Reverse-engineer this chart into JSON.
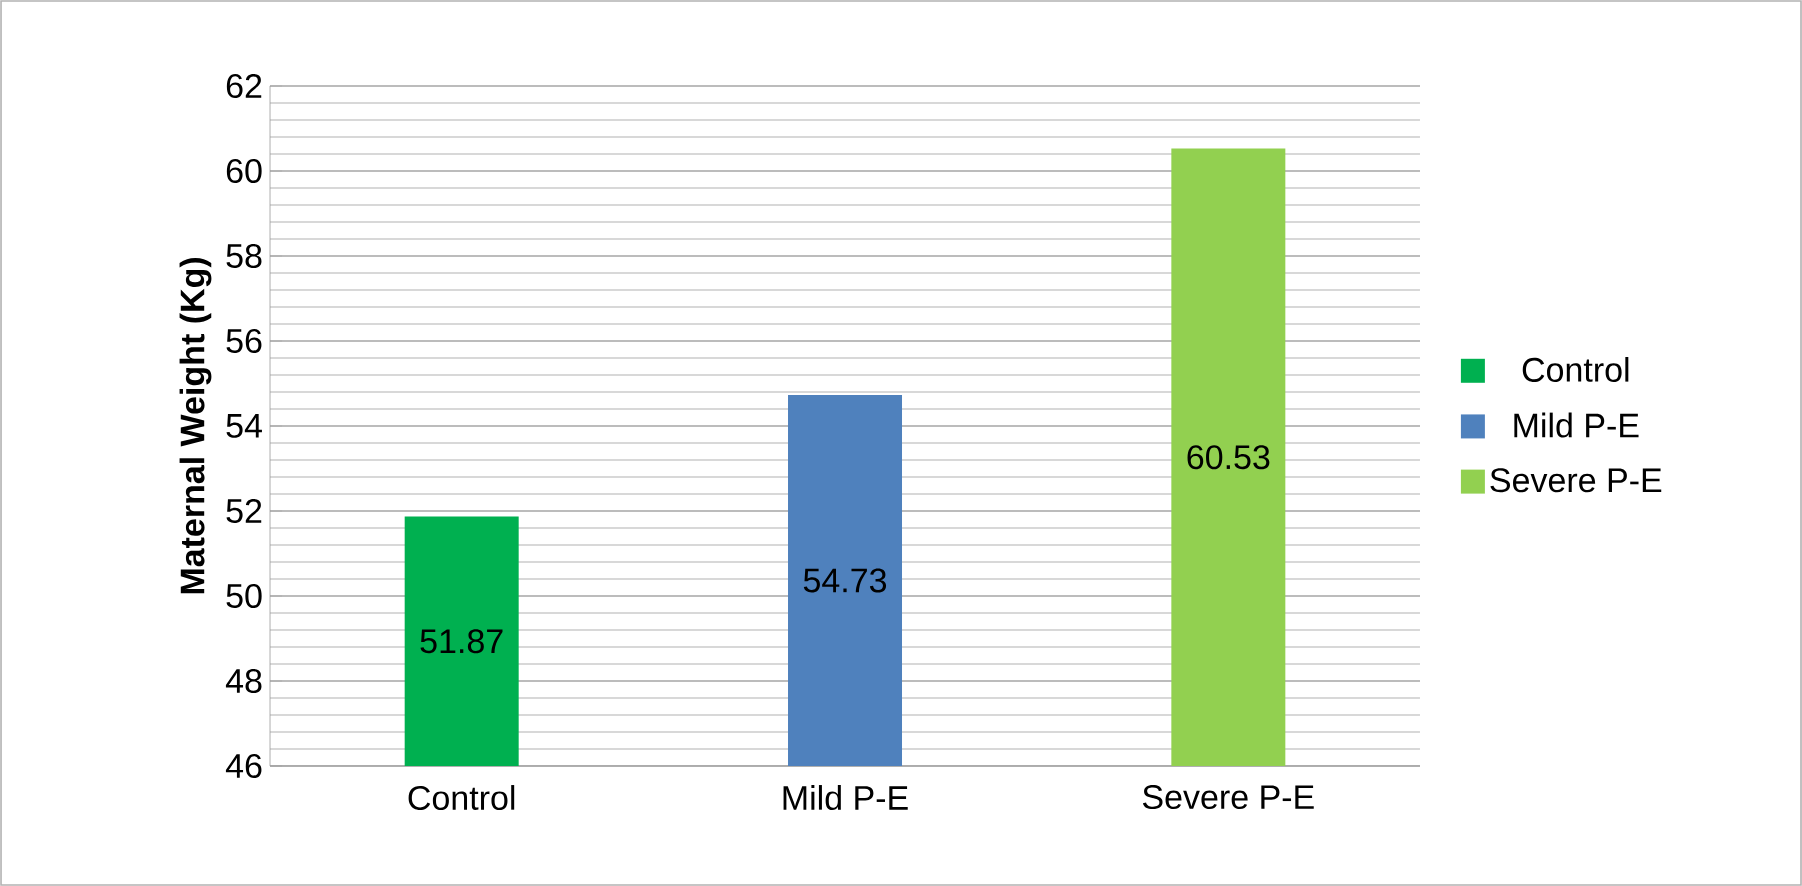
{
  "chart_data": {
    "type": "bar",
    "ylabel": "Maternal Weight (Kg)",
    "categories": [
      "Control",
      "Mild P-E",
      "Severe P-E"
    ],
    "series": [
      {
        "name": "Control",
        "color": "#00b050",
        "values": [
          51.87,
          null,
          null
        ]
      },
      {
        "name": "Mild P-E",
        "color": "#4f81bd",
        "values": [
          null,
          54.73,
          null
        ]
      },
      {
        "name": "Severe P-E",
        "color": "#92d050",
        "values": [
          null,
          null,
          60.53
        ]
      }
    ],
    "ylim": [
      46,
      62
    ],
    "yticks": [
      46,
      48,
      50,
      52,
      54,
      56,
      58,
      60,
      62
    ],
    "grid": true,
    "legend": "right",
    "data_labels": true
  }
}
